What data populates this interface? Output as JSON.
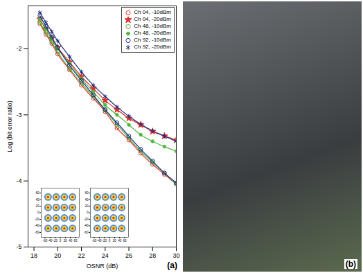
{
  "chart_data": {
    "type": "line",
    "xlabel": "OSNR (dB)",
    "ylabel": "Log (bit error ratio)",
    "xlim": [
      17.5,
      30
    ],
    "ylim": [
      -5,
      -1.35
    ],
    "xticks": [
      18,
      20,
      22,
      24,
      26,
      28,
      30
    ],
    "yticks": [
      -2,
      -3,
      -4,
      -5
    ],
    "grid": false,
    "legend": "top-right",
    "annotations": [
      "(a)"
    ],
    "x": [
      18.5,
      19,
      19.5,
      20,
      21,
      22,
      23,
      24,
      25,
      26,
      27,
      28,
      29,
      30
    ],
    "series": [
      {
        "name": "Ch 04, -10dBm",
        "color": "#e0302a",
        "marker": "circle-open",
        "values": [
          -1.62,
          -1.78,
          -1.92,
          -2.08,
          -2.32,
          -2.55,
          -2.75,
          -2.95,
          -3.2,
          -3.38,
          -3.58,
          -3.75,
          -3.9,
          -4.05
        ]
      },
      {
        "name": "Ch 04, -20dBm",
        "color": "#e0302a",
        "marker": "star",
        "values": [
          -1.55,
          -1.7,
          -1.84,
          -1.98,
          -2.2,
          -2.42,
          -2.6,
          -2.78,
          -2.92,
          -3.05,
          -3.15,
          -3.25,
          -3.32,
          -3.38
        ]
      },
      {
        "name": "Ch 48, -10dBm",
        "color": "#4fb83f",
        "marker": "circle-open",
        "values": [
          -1.6,
          -1.75,
          -1.9,
          -2.05,
          -2.3,
          -2.52,
          -2.72,
          -2.93,
          -3.15,
          -3.35,
          -3.55,
          -3.72,
          -3.88,
          -4.05
        ]
      },
      {
        "name": "Ch 48, -20dBm",
        "color": "#4fb83f",
        "marker": "dot",
        "values": [
          -1.55,
          -1.7,
          -1.85,
          -2.0,
          -2.22,
          -2.45,
          -2.65,
          -2.85,
          -3.0,
          -3.15,
          -3.3,
          -3.4,
          -3.48,
          -3.55
        ]
      },
      {
        "name": "Ch 92, -10dBm",
        "color": "#1c2e80",
        "marker": "circle-open",
        "values": [
          -1.5,
          -1.66,
          -1.82,
          -1.98,
          -2.25,
          -2.48,
          -2.7,
          -2.92,
          -3.12,
          -3.32,
          -3.52,
          -3.7,
          -3.88,
          -4.03
        ]
      },
      {
        "name": "Ch 92, -20dBm",
        "color": "#1c2e80",
        "marker": "asterisk",
        "values": [
          -1.45,
          -1.6,
          -1.74,
          -1.88,
          -2.12,
          -2.35,
          -2.55,
          -2.72,
          -2.88,
          -3.02,
          -3.14,
          -3.24,
          -3.32,
          -3.4
        ]
      }
    ],
    "insets": [
      {
        "type": "scatter",
        "xlim": [
          -75,
          75
        ],
        "ylim": [
          -75,
          75
        ],
        "xticks": [
          -60,
          -40,
          -20,
          0,
          20,
          40,
          60
        ],
        "yticks": [
          60,
          40,
          20,
          0,
          -20,
          -40,
          -60
        ],
        "points": [
          -48,
          -16,
          16,
          48
        ]
      },
      {
        "type": "scatter",
        "xlim": [
          -75,
          75
        ],
        "ylim": [
          -75,
          75
        ],
        "xticks": [
          -60,
          -40,
          -20,
          0,
          20,
          40,
          60
        ],
        "yticks": [
          60,
          40,
          20,
          0,
          -20,
          -40,
          -60
        ],
        "points": [
          -48,
          -16,
          16,
          48
        ]
      }
    ]
  },
  "photo": {
    "label": "(b)"
  }
}
